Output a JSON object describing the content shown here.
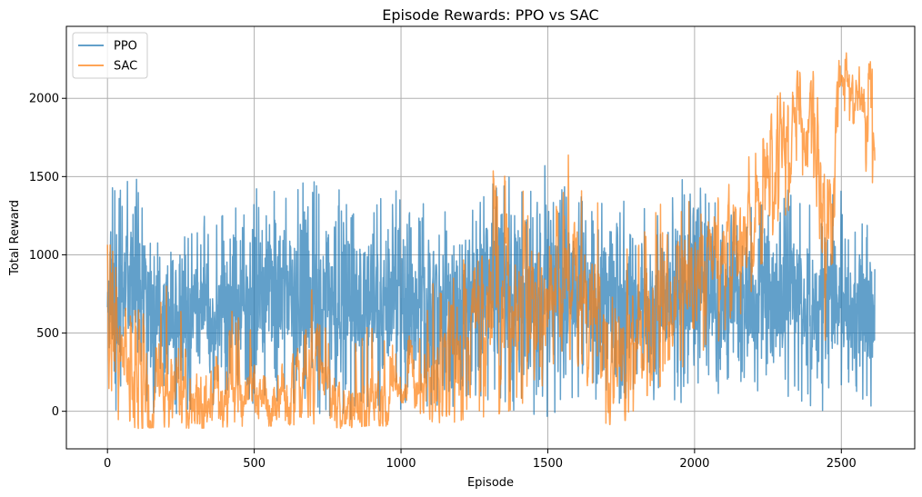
{
  "chart_data": {
    "type": "line",
    "title": "Episode Rewards: PPO vs SAC",
    "xlabel": "Episode",
    "ylabel": "Total Reward",
    "xlim": [
      -140,
      2750
    ],
    "ylim": [
      -240,
      2460
    ],
    "xticks": [
      0,
      500,
      1000,
      1500,
      2000,
      2500
    ],
    "yticks": [
      0,
      500,
      1000,
      1500,
      2000
    ],
    "grid": true,
    "legend_position": "top-left",
    "n_episodes": 2615,
    "series": [
      {
        "name": "PPO",
        "color": "#1f77b4",
        "opacity": 0.7,
        "envelope_episodes": [
          0,
          100,
          200,
          300,
          400,
          500,
          600,
          700,
          800,
          900,
          1000,
          1100,
          1200,
          1300,
          1400,
          1500,
          1600,
          1700,
          1800,
          1900,
          2000,
          2100,
          2200,
          2300,
          2400,
          2500,
          2600
        ],
        "envelope_min": [
          -40,
          0,
          -50,
          0,
          20,
          0,
          -20,
          0,
          -100,
          -20,
          -20,
          10,
          -30,
          0,
          -50,
          -40,
          0,
          100,
          -60,
          30,
          70,
          100,
          130,
          50,
          0,
          -50,
          -80
        ],
        "envelope_max": [
          1470,
          1530,
          1240,
          1250,
          1260,
          1440,
          1400,
          1510,
          1470,
          1450,
          1450,
          1300,
          1330,
          1500,
          1570,
          1570,
          1520,
          1350,
          1400,
          1300,
          1620,
          1310,
          1360,
          1450,
          1390,
          1450,
          1250
        ],
        "envelope_center": [
          600,
          600,
          580,
          560,
          600,
          600,
          580,
          600,
          580,
          560,
          600,
          620,
          620,
          640,
          660,
          660,
          640,
          640,
          620,
          620,
          640,
          620,
          600,
          600,
          580,
          560,
          500
        ]
      },
      {
        "name": "SAC",
        "color": "#ff7f0e",
        "opacity": 0.7,
        "envelope_episodes": [
          0,
          100,
          200,
          300,
          400,
          500,
          600,
          700,
          800,
          900,
          1000,
          1100,
          1200,
          1300,
          1400,
          1500,
          1600,
          1700,
          1800,
          1900,
          2000,
          2100,
          2200,
          2300,
          2400,
          2450,
          2500,
          2550,
          2600,
          2615
        ],
        "envelope_min": [
          -100,
          -110,
          -100,
          -110,
          -100,
          -100,
          -90,
          -80,
          -110,
          -90,
          -100,
          -70,
          -80,
          -40,
          0,
          200,
          300,
          -90,
          -40,
          200,
          300,
          450,
          750,
          1200,
          1600,
          200,
          1900,
          1800,
          1400,
          1400
        ],
        "envelope_max": [
          1100,
          700,
          800,
          700,
          700,
          500,
          600,
          870,
          350,
          600,
          350,
          850,
          1150,
          1600,
          1450,
          1550,
          1730,
          1350,
          1250,
          1400,
          1350,
          1620,
          1650,
          2150,
          2200,
          2250,
          2350,
          2300,
          2250,
          2200
        ],
        "envelope_center": [
          500,
          50,
          150,
          50,
          100,
          50,
          120,
          250,
          30,
          50,
          100,
          300,
          450,
          650,
          600,
          800,
          1000,
          350,
          400,
          700,
          800,
          1000,
          1200,
          1800,
          2000,
          1000,
          2100,
          2100,
          1900,
          1700
        ]
      }
    ]
  }
}
